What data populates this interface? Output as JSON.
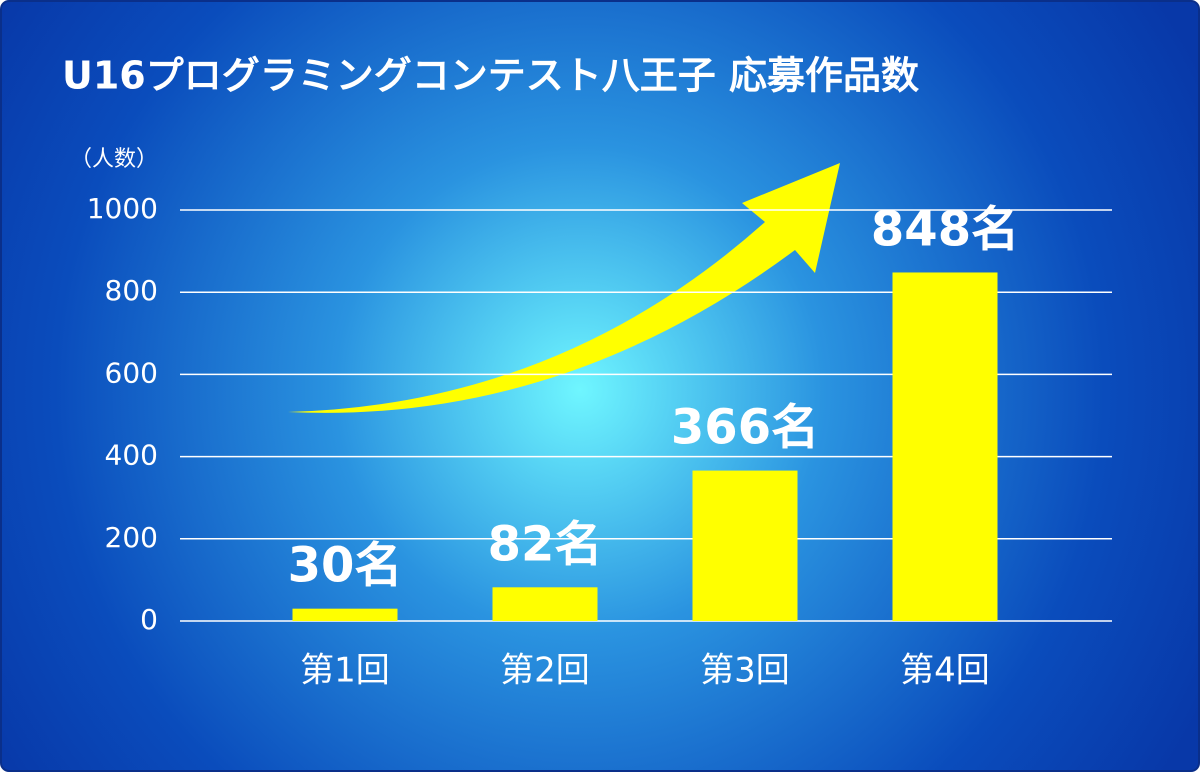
{
  "chart_data": {
    "type": "bar",
    "title": "U16プログラミングコンテスト八王子 応募作品数",
    "y_label": "（人数）",
    "categories": [
      "第1回",
      "第2回",
      "第3回",
      "第4回"
    ],
    "values": [
      30,
      82,
      366,
      848
    ],
    "value_labels": [
      "30名",
      "82名",
      "366名",
      "848名"
    ],
    "color": "#ffff00",
    "ylim": [
      0,
      1000
    ],
    "yticks": [
      0,
      200,
      400,
      600,
      800,
      1000
    ],
    "grid": true
  }
}
